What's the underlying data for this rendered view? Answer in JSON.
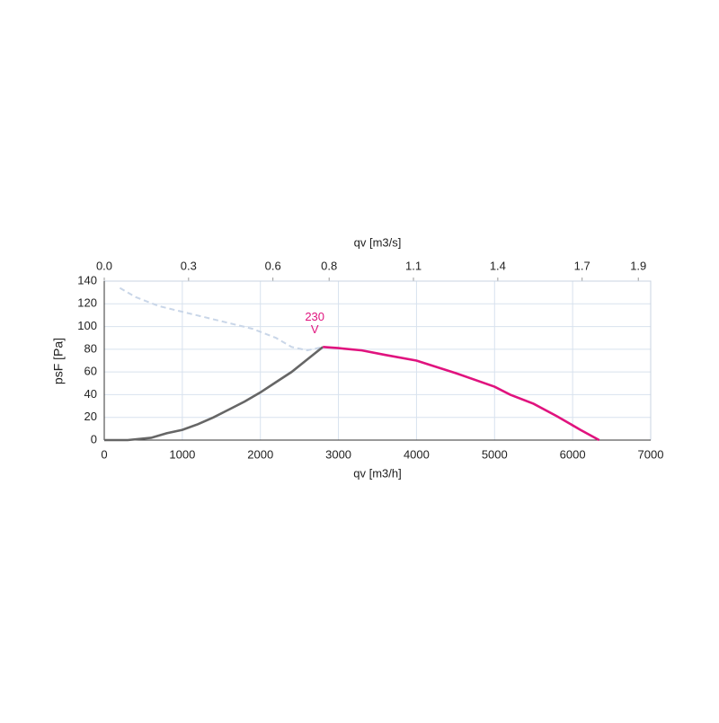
{
  "chart_data": {
    "type": "line",
    "xlabel": "qv [m3/h]",
    "ylabel": "psF [Pa]",
    "x2label": "qv [m3/s]",
    "xlim": [
      0,
      7000
    ],
    "xticks": [
      0,
      1000,
      2000,
      3000,
      4000,
      5000,
      6000,
      7000
    ],
    "ylim": [
      0,
      140
    ],
    "yticks": [
      0,
      20,
      40,
      60,
      80,
      100,
      120,
      140
    ],
    "x2lim": [
      0,
      1.944
    ],
    "x2ticks": [
      {
        "value": 0,
        "label": "0.0"
      },
      0.3,
      0.6,
      0.8,
      1.1,
      1.4,
      1.7,
      1.9
    ],
    "grid": true,
    "annotation": [
      "230",
      "V"
    ],
    "annotation_color": "#e0137e",
    "annotation_x": 2650,
    "annotation_y": 82,
    "series": [
      {
        "color": "#c9d6e8",
        "dashed": true,
        "x": [
          200,
          400,
          700,
          1000,
          1300,
          1600,
          1900,
          2200,
          2400,
          2600,
          2800
        ],
        "values": [
          134,
          126,
          118,
          113,
          108,
          103,
          98,
          90,
          82,
          79,
          82
        ]
      },
      {
        "color": "#666666",
        "dashed": false,
        "x": [
          0,
          300,
          600,
          800,
          1000,
          1200,
          1400,
          1600,
          1800,
          2000,
          2200,
          2400,
          2600,
          2800
        ],
        "values": [
          0,
          0,
          2,
          6,
          9,
          14,
          20,
          27,
          34,
          42,
          51,
          60,
          71,
          82
        ]
      },
      {
        "color": "#e0137e",
        "dashed": false,
        "x": [
          2800,
          3000,
          3300,
          3600,
          4000,
          4500,
          5000,
          5200,
          5500,
          5800,
          6100,
          6340
        ],
        "values": [
          82,
          81,
          79,
          75,
          70,
          59,
          47,
          40,
          32,
          21,
          9,
          0
        ]
      }
    ]
  }
}
